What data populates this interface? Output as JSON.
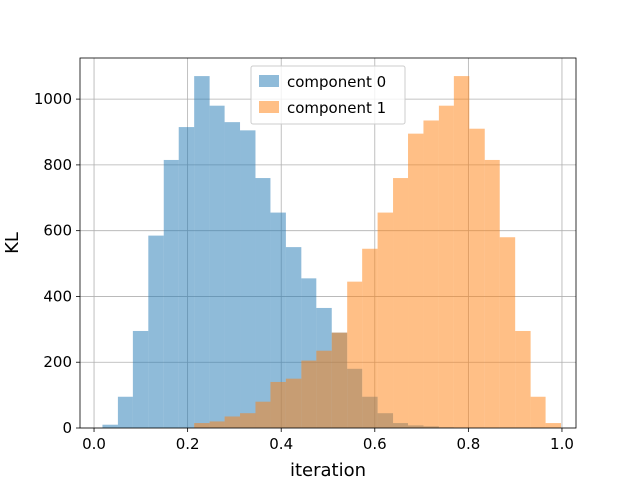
{
  "chart_data": {
    "type": "bar",
    "subtype": "overlapping-histogram",
    "xlabel": "iteration",
    "ylabel": "KL",
    "xlim": [
      -0.03,
      1.03
    ],
    "ylim": [
      0,
      1125
    ],
    "xticks": [
      0.0,
      0.2,
      0.4,
      0.6,
      0.8,
      1.0
    ],
    "xtick_labels": [
      "0.0",
      "0.2",
      "0.4",
      "0.6",
      "0.8",
      "1.0"
    ],
    "yticks": [
      0,
      200,
      400,
      600,
      800,
      1000
    ],
    "ytick_labels": [
      "0",
      "200",
      "400",
      "600",
      "800",
      "1000"
    ],
    "grid": true,
    "legend": {
      "placement": "upper-center"
    },
    "series": [
      {
        "name": "component 0",
        "color": "#1f77b4",
        "alpha": 0.5,
        "bin_edges": [
          0.018,
          0.051,
          0.083,
          0.116,
          0.149,
          0.181,
          0.214,
          0.247,
          0.279,
          0.312,
          0.345,
          0.377,
          0.41,
          0.443,
          0.475,
          0.508,
          0.541,
          0.573,
          0.606,
          0.639,
          0.671,
          0.704,
          0.737,
          0.769,
          0.802,
          0.835,
          0.867,
          0.9,
          0.933,
          0.965,
          0.998
        ],
        "values": [
          10,
          95,
          295,
          585,
          815,
          915,
          1070,
          980,
          930,
          905,
          760,
          655,
          550,
          455,
          365,
          290,
          180,
          95,
          45,
          15,
          8,
          5,
          2,
          1,
          1,
          0,
          0,
          0,
          0,
          0
        ]
      },
      {
        "name": "component 1",
        "color": "#ff7f0e",
        "alpha": 0.5,
        "bin_edges": [
          0.018,
          0.051,
          0.083,
          0.116,
          0.149,
          0.181,
          0.214,
          0.247,
          0.279,
          0.312,
          0.345,
          0.377,
          0.41,
          0.443,
          0.475,
          0.508,
          0.541,
          0.573,
          0.606,
          0.639,
          0.671,
          0.704,
          0.737,
          0.769,
          0.802,
          0.835,
          0.867,
          0.9,
          0.933,
          0.965,
          0.998
        ],
        "values": [
          0,
          0,
          0,
          0,
          0,
          0,
          15,
          20,
          35,
          45,
          80,
          140,
          150,
          205,
          235,
          290,
          445,
          545,
          655,
          760,
          895,
          935,
          980,
          1070,
          910,
          815,
          580,
          295,
          95,
          15
        ]
      }
    ]
  }
}
